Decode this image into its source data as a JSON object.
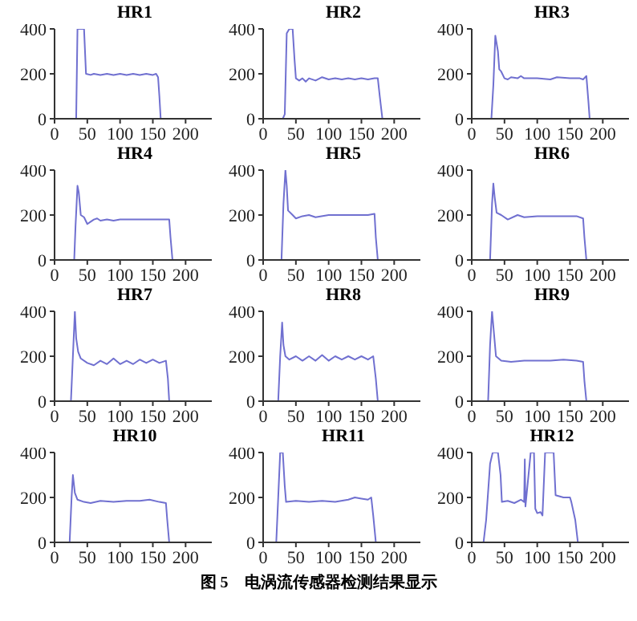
{
  "chart_data": [
    {
      "type": "line",
      "title": "HR1",
      "xlim": [
        0,
        240
      ],
      "ylim": [
        0,
        400
      ],
      "xticks": [
        0,
        50,
        100,
        150,
        200
      ],
      "yticks": [
        0,
        200,
        400
      ],
      "series": [
        {
          "color": "#7070d0",
          "x": [
            0,
            33,
            35,
            40,
            45,
            48,
            55,
            60,
            70,
            80,
            90,
            100,
            110,
            120,
            130,
            140,
            150,
            155,
            158,
            160,
            162,
            240
          ],
          "values": [
            0,
            0,
            400,
            400,
            400,
            200,
            195,
            200,
            195,
            200,
            195,
            200,
            195,
            200,
            195,
            200,
            195,
            200,
            185,
            100,
            0,
            0
          ]
        }
      ]
    },
    {
      "type": "line",
      "title": "HR2",
      "xlim": [
        0,
        240
      ],
      "ylim": [
        0,
        400
      ],
      "xticks": [
        0,
        50,
        100,
        150,
        200
      ],
      "yticks": [
        0,
        200,
        400
      ],
      "series": [
        {
          "color": "#7070d0",
          "x": [
            0,
            30,
            33,
            36,
            40,
            45,
            48,
            50,
            55,
            60,
            65,
            70,
            80,
            90,
            100,
            110,
            120,
            130,
            140,
            150,
            160,
            170,
            175,
            178,
            182,
            240
          ],
          "values": [
            0,
            0,
            20,
            380,
            400,
            400,
            260,
            180,
            170,
            180,
            165,
            180,
            170,
            185,
            175,
            180,
            175,
            180,
            175,
            180,
            175,
            180,
            180,
            100,
            0,
            0
          ]
        }
      ]
    },
    {
      "type": "line",
      "title": "HR3",
      "xlim": [
        0,
        240
      ],
      "ylim": [
        0,
        400
      ],
      "xticks": [
        0,
        50,
        100,
        150,
        200
      ],
      "yticks": [
        0,
        200,
        400
      ],
      "series": [
        {
          "color": "#7070d0",
          "x": [
            0,
            30,
            33,
            36,
            40,
            42,
            45,
            50,
            55,
            60,
            70,
            75,
            80,
            100,
            120,
            130,
            150,
            165,
            170,
            175,
            178,
            180,
            240
          ],
          "values": [
            0,
            0,
            150,
            370,
            300,
            220,
            210,
            180,
            175,
            185,
            180,
            190,
            180,
            180,
            175,
            185,
            180,
            180,
            175,
            190,
            80,
            0,
            0
          ]
        }
      ]
    },
    {
      "type": "line",
      "title": "HR4",
      "xlim": [
        0,
        240
      ],
      "ylim": [
        0,
        400
      ],
      "xticks": [
        0,
        50,
        100,
        150,
        200
      ],
      "yticks": [
        0,
        200,
        400
      ],
      "series": [
        {
          "color": "#7070d0",
          "x": [
            0,
            30,
            32,
            35,
            37,
            40,
            45,
            50,
            55,
            60,
            65,
            70,
            80,
            90,
            100,
            120,
            140,
            160,
            175,
            177,
            180,
            240
          ],
          "values": [
            0,
            0,
            150,
            330,
            300,
            200,
            190,
            160,
            170,
            180,
            185,
            175,
            180,
            175,
            180,
            180,
            180,
            180,
            180,
            100,
            0,
            0
          ]
        }
      ]
    },
    {
      "type": "line",
      "title": "HR5",
      "xlim": [
        0,
        240
      ],
      "ylim": [
        0,
        400
      ],
      "xticks": [
        0,
        50,
        100,
        150,
        200
      ],
      "yticks": [
        0,
        200,
        400
      ],
      "series": [
        {
          "color": "#7070d0",
          "x": [
            0,
            28,
            31,
            34,
            36,
            38,
            45,
            50,
            60,
            70,
            80,
            100,
            120,
            140,
            160,
            170,
            172,
            175,
            240
          ],
          "values": [
            0,
            0,
            250,
            400,
            330,
            220,
            200,
            185,
            195,
            200,
            190,
            200,
            200,
            200,
            200,
            205,
            100,
            0,
            0
          ]
        }
      ]
    },
    {
      "type": "line",
      "title": "HR6",
      "xlim": [
        0,
        240
      ],
      "ylim": [
        0,
        400
      ],
      "xticks": [
        0,
        50,
        100,
        150,
        200
      ],
      "yticks": [
        0,
        200,
        400
      ],
      "series": [
        {
          "color": "#7070d0",
          "x": [
            0,
            28,
            31,
            33,
            35,
            38,
            45,
            55,
            70,
            80,
            100,
            120,
            140,
            160,
            170,
            172,
            175,
            240
          ],
          "values": [
            0,
            0,
            250,
            340,
            280,
            210,
            200,
            180,
            200,
            190,
            195,
            195,
            195,
            195,
            185,
            100,
            0,
            0
          ]
        }
      ]
    },
    {
      "type": "line",
      "title": "HR7",
      "xlim": [
        0,
        240
      ],
      "ylim": [
        0,
        400
      ],
      "xticks": [
        0,
        50,
        100,
        150,
        200
      ],
      "yticks": [
        0,
        200,
        400
      ],
      "series": [
        {
          "color": "#7070d0",
          "x": [
            0,
            25,
            28,
            31,
            33,
            36,
            40,
            50,
            60,
            70,
            80,
            90,
            100,
            110,
            120,
            130,
            140,
            150,
            160,
            170,
            173,
            175,
            240
          ],
          "values": [
            0,
            0,
            200,
            400,
            280,
            220,
            190,
            170,
            160,
            180,
            165,
            190,
            165,
            180,
            165,
            185,
            170,
            185,
            170,
            180,
            100,
            0,
            0
          ]
        }
      ]
    },
    {
      "type": "line",
      "title": "HR8",
      "xlim": [
        0,
        240
      ],
      "ylim": [
        0,
        400
      ],
      "xticks": [
        0,
        50,
        100,
        150,
        200
      ],
      "yticks": [
        0,
        200,
        400
      ],
      "series": [
        {
          "color": "#7070d0",
          "x": [
            0,
            23,
            26,
            29,
            31,
            34,
            40,
            50,
            60,
            70,
            80,
            90,
            100,
            110,
            120,
            130,
            140,
            150,
            160,
            168,
            172,
            175,
            240
          ],
          "values": [
            0,
            0,
            200,
            350,
            250,
            200,
            185,
            200,
            180,
            200,
            180,
            205,
            180,
            200,
            185,
            200,
            185,
            200,
            185,
            200,
            100,
            0,
            0
          ]
        }
      ]
    },
    {
      "type": "line",
      "title": "HR9",
      "xlim": [
        0,
        240
      ],
      "ylim": [
        0,
        400
      ],
      "xticks": [
        0,
        50,
        100,
        150,
        200
      ],
      "yticks": [
        0,
        200,
        400
      ],
      "series": [
        {
          "color": "#7070d0",
          "x": [
            0,
            25,
            28,
            31,
            34,
            37,
            45,
            60,
            80,
            100,
            120,
            140,
            160,
            170,
            172,
            175,
            240
          ],
          "values": [
            0,
            0,
            250,
            400,
            300,
            200,
            180,
            175,
            180,
            180,
            180,
            185,
            180,
            175,
            90,
            0,
            0
          ]
        }
      ]
    },
    {
      "type": "line",
      "title": "HR10",
      "xlim": [
        0,
        240
      ],
      "ylim": [
        0,
        400
      ],
      "xticks": [
        0,
        50,
        100,
        150,
        200
      ],
      "yticks": [
        0,
        200,
        400
      ],
      "series": [
        {
          "color": "#7070d0",
          "x": [
            0,
            23,
            26,
            28,
            31,
            35,
            45,
            55,
            70,
            90,
            110,
            130,
            145,
            160,
            170,
            172,
            175,
            240
          ],
          "values": [
            0,
            0,
            200,
            300,
            220,
            190,
            180,
            175,
            185,
            180,
            185,
            185,
            190,
            180,
            175,
            100,
            0,
            0
          ]
        }
      ]
    },
    {
      "type": "line",
      "title": "HR11",
      "xlim": [
        0,
        240
      ],
      "ylim": [
        0,
        400
      ],
      "xticks": [
        0,
        50,
        100,
        150,
        200
      ],
      "yticks": [
        0,
        200,
        400
      ],
      "series": [
        {
          "color": "#7070d0",
          "x": [
            0,
            20,
            23,
            26,
            30,
            33,
            35,
            50,
            70,
            90,
            110,
            130,
            140,
            150,
            160,
            165,
            168,
            172,
            240
          ],
          "values": [
            0,
            0,
            200,
            400,
            400,
            250,
            180,
            185,
            180,
            185,
            180,
            190,
            200,
            195,
            190,
            200,
            120,
            0,
            0
          ]
        }
      ]
    },
    {
      "type": "line",
      "title": "HR12",
      "xlim": [
        0,
        240
      ],
      "ylim": [
        0,
        400
      ],
      "xticks": [
        0,
        50,
        100,
        150,
        200
      ],
      "yticks": [
        0,
        200,
        400
      ],
      "annotations": [
        "图 5　电涡流传感器检测结果显示"
      ],
      "series": [
        {
          "color": "#7070d0",
          "x": [
            0,
            18,
            22,
            28,
            32,
            40,
            44,
            46,
            55,
            65,
            75,
            80,
            81,
            82,
            90,
            95,
            97,
            100,
            105,
            108,
            112,
            118,
            125,
            128,
            140,
            150,
            152,
            158,
            162,
            240
          ],
          "values": [
            0,
            0,
            100,
            350,
            400,
            400,
            300,
            180,
            185,
            175,
            190,
            180,
            370,
            160,
            400,
            400,
            150,
            130,
            135,
            120,
            400,
            400,
            400,
            210,
            200,
            200,
            180,
            100,
            0,
            0
          ]
        }
      ]
    }
  ]
}
